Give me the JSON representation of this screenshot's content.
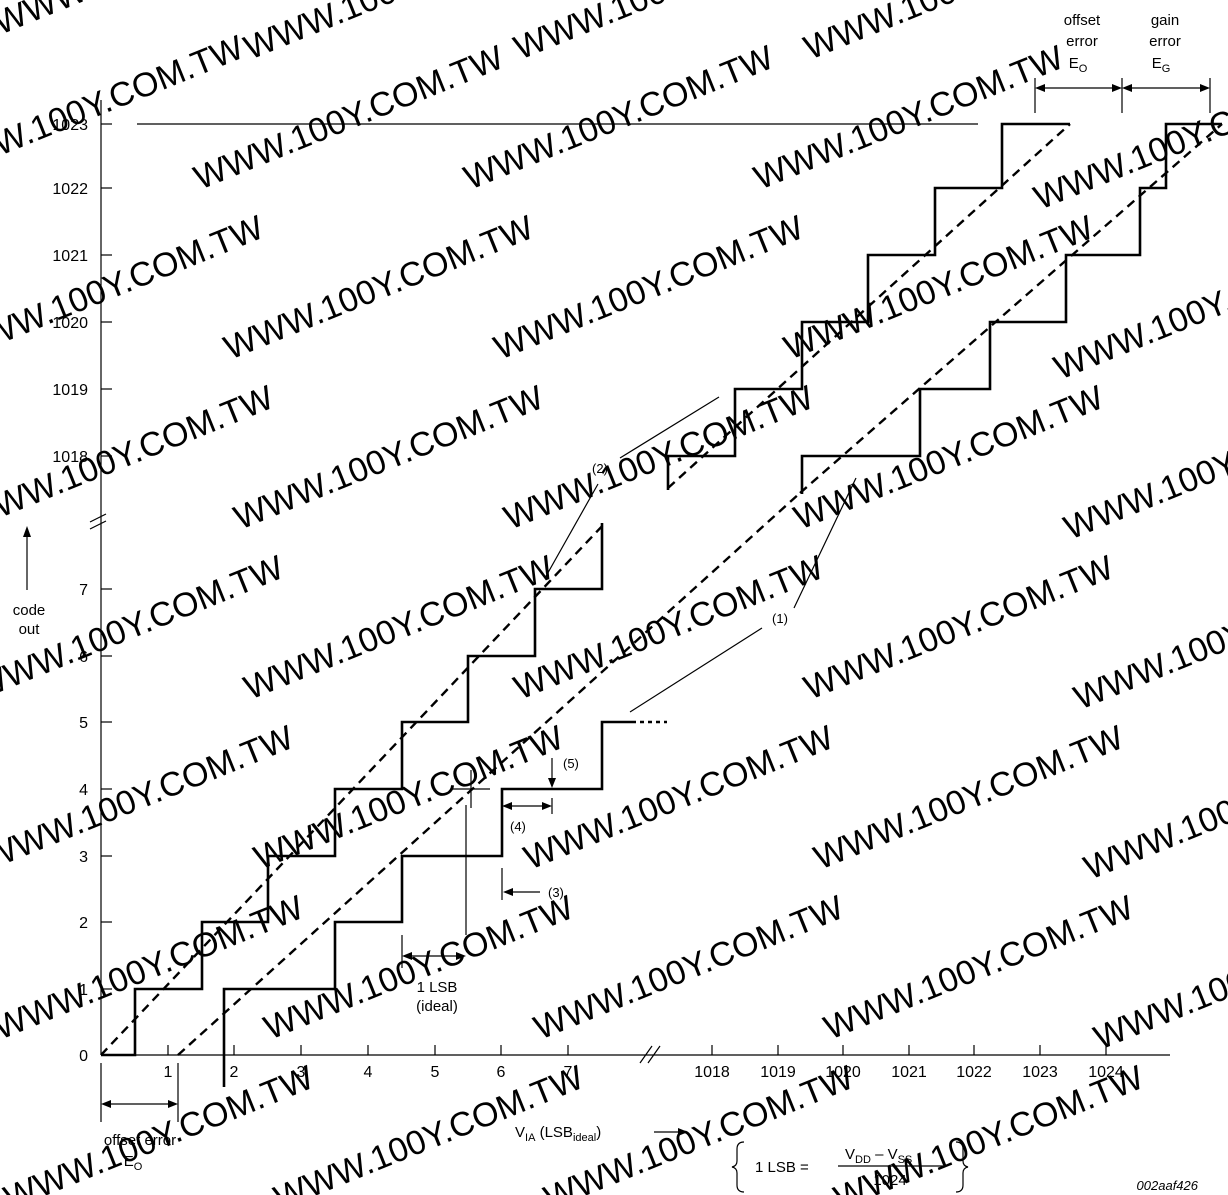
{
  "watermark": {
    "text": "WWW.100Y.COM.TW"
  },
  "y_axis": {
    "ticks": [
      "0",
      "1",
      "2",
      "3",
      "4",
      "5",
      "6",
      "7",
      "1018",
      "1019",
      "1020",
      "1021",
      "1022",
      "1023"
    ],
    "label_line1": "code",
    "label_line2": "out"
  },
  "x_axis": {
    "ticks": [
      "1",
      "2",
      "3",
      "4",
      "5",
      "6",
      "7",
      "1018",
      "1019",
      "1020",
      "1021",
      "1022",
      "1023",
      "1024"
    ],
    "label_main": "V",
    "label_sub": "IA",
    "label_rest": " (LSB",
    "label_sub2": "ideal",
    "label_end": ")"
  },
  "annotations": {
    "n1": "(1)",
    "n2": "(2)",
    "n3": "(3)",
    "n4": "(4)",
    "n5": "(5)",
    "one_lsb": "1 LSB",
    "ideal": "(ideal)",
    "offset_error_bottom": "offset error",
    "eo_bottom_E": "E",
    "eo_bottom_O": "O",
    "offset_top_1": "offset",
    "offset_top_2": "error",
    "eo_top_E": "E",
    "eo_top_O": "O",
    "gain_top_1": "gain",
    "gain_top_2": "error",
    "eg_top_E": "E",
    "eg_top_G": "G"
  },
  "formula": {
    "lhs": "1 LSB =",
    "num_v1": "V",
    "num_dd": "DD",
    "num_minus": " – V",
    "num_ss": "SS",
    "den": "1024"
  },
  "figure_id": "002aaf426"
}
